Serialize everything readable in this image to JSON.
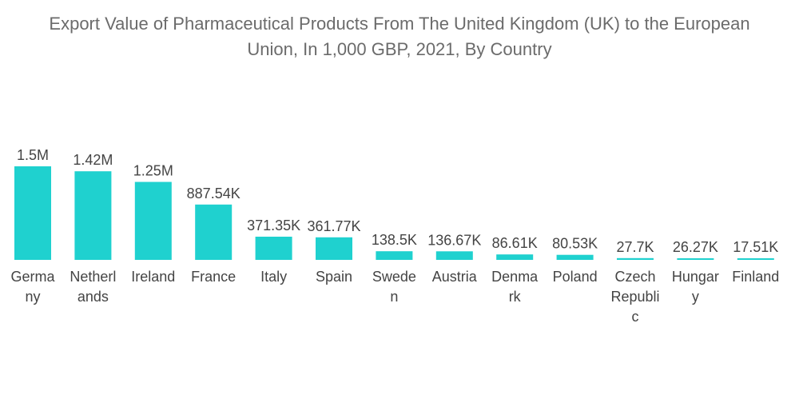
{
  "chart_data": {
    "type": "bar",
    "title_lines": [
      "Export Value of Pharmaceutical Products From The United Kingdom (UK) to the European",
      "Union, In 1,000 GBP, 2021, By Country"
    ],
    "categories": [
      "Germany",
      "Netherlands",
      "Ireland",
      "France",
      "Italy",
      "Spain",
      "Sweden",
      "Austria",
      "Denmark",
      "Poland",
      "Czech Republic",
      "Hungary",
      "Finland"
    ],
    "category_label_lines": [
      [
        "Germa",
        "ny"
      ],
      [
        "Netherl",
        "ands"
      ],
      [
        "Ireland"
      ],
      [
        "France"
      ],
      [
        "Italy"
      ],
      [
        "Spain"
      ],
      [
        "Swede",
        "n"
      ],
      [
        "Austria"
      ],
      [
        "Denma",
        "rk"
      ],
      [
        "Poland"
      ],
      [
        "Czech",
        "Republi",
        "c"
      ],
      [
        "Hungar",
        "y"
      ],
      [
        "Finland"
      ]
    ],
    "values": [
      1500000,
      1420000,
      1250000,
      887540,
      371350,
      361770,
      138500,
      136670,
      86610,
      80530,
      27700,
      26270,
      17510
    ],
    "data_labels": [
      "1.5M",
      "1.42M",
      "1.25M",
      "887.54K",
      "371.35K",
      "361.77K",
      "138.5K",
      "136.67K",
      "86.61K",
      "80.53K",
      "27.7K",
      "26.27K",
      "17.51K"
    ],
    "bar_color": "#1fd1cf",
    "grid": false,
    "legend": "none"
  }
}
